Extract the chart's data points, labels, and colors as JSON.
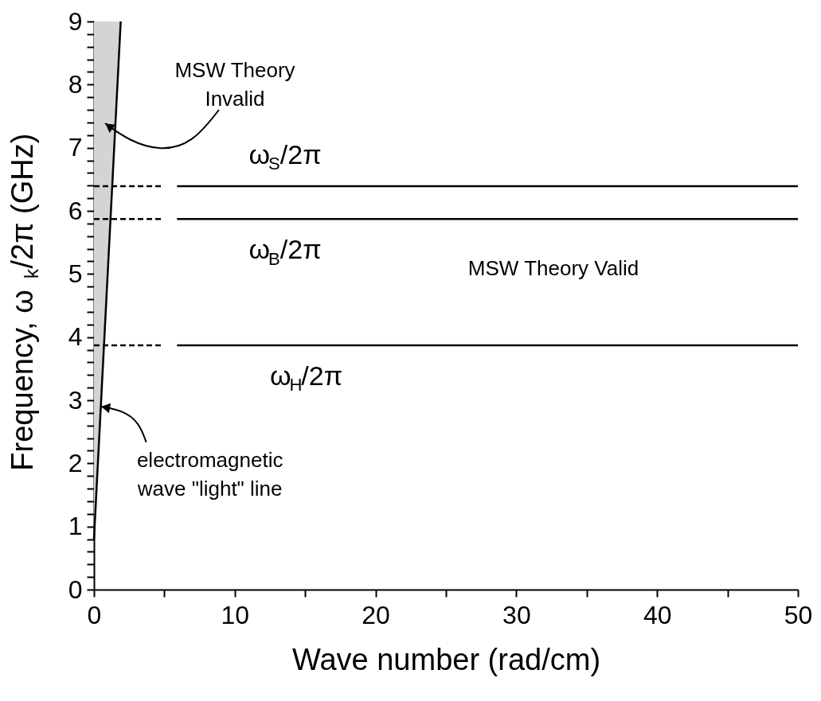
{
  "chart_data": {
    "type": "line",
    "xlabel": "Wave number (rad/cm)",
    "ylabel": "Frequency, ω$_{k}$/2π (GHz)",
    "xlim": [
      0,
      50
    ],
    "ylim": [
      0,
      9
    ],
    "xticks": [
      0,
      {
        "value": 5,
        "label": null
      },
      10,
      {
        "value": 15,
        "label": null
      },
      20,
      {
        "value": 25,
        "label": null
      },
      30,
      {
        "value": 35,
        "label": null
      },
      40,
      {
        "value": 45,
        "label": null
      },
      50
    ],
    "yticks": [
      0,
      {
        "value": 0.2,
        "label": null
      },
      {
        "value": 0.4,
        "label": null
      },
      {
        "value": 0.6,
        "label": null
      },
      {
        "value": 0.8,
        "label": null
      },
      1,
      {
        "value": 1.2,
        "label": null
      },
      {
        "value": 1.4,
        "label": null
      },
      {
        "value": 1.6,
        "label": null
      },
      {
        "value": 1.8,
        "label": null
      },
      2,
      {
        "value": 2.2,
        "label": null
      },
      {
        "value": 2.4,
        "label": null
      },
      {
        "value": 2.6,
        "label": null
      },
      {
        "value": 2.8,
        "label": null
      },
      3,
      {
        "value": 3.2,
        "label": null
      },
      {
        "value": 3.4,
        "label": null
      },
      {
        "value": 3.6,
        "label": null
      },
      {
        "value": 3.8,
        "label": null
      },
      4,
      {
        "value": 4.2,
        "label": null
      },
      {
        "value": 4.4,
        "label": null
      },
      {
        "value": 4.6,
        "label": null
      },
      {
        "value": 4.8,
        "label": null
      },
      5,
      {
        "value": 5.2,
        "label": null
      },
      {
        "value": 5.4,
        "label": null
      },
      {
        "value": 5.6,
        "label": null
      },
      {
        "value": 5.8,
        "label": null
      },
      6,
      {
        "value": 6.2,
        "label": null
      },
      {
        "value": 6.4,
        "label": null
      },
      {
        "value": 6.6,
        "label": null
      },
      {
        "value": 6.8,
        "label": null
      },
      7,
      {
        "value": 7.2,
        "label": null
      },
      {
        "value": 7.4,
        "label": null
      },
      {
        "value": 7.6,
        "label": null
      },
      {
        "value": 7.8,
        "label": null
      },
      8,
      {
        "value": 8.2,
        "label": null
      },
      {
        "value": 8.4,
        "label": null
      },
      {
        "value": 8.6,
        "label": null
      },
      {
        "value": 8.8,
        "label": null
      },
      9
    ],
    "grid": false,
    "marker": "none",
    "series": [
      {
        "x": [
          0,
          1.9
        ],
        "values": [
          0.8,
          9
        ],
        "lower": [
          0.8,
          9
        ],
        "upper": [
          9,
          9
        ],
        "color": "#000000"
      },
      {
        "x": [
          0,
          4.8
        ],
        "values": [
          6.39,
          6.39
        ],
        "color": "#000000",
        "line_style": "dashed"
      },
      {
        "x": [
          0,
          4.8
        ],
        "values": [
          5.87,
          5.87
        ],
        "color": "#000000",
        "line_style": "dashed"
      },
      {
        "x": [
          0,
          4.8
        ],
        "values": [
          3.87,
          3.87
        ],
        "color": "#000000",
        "line_style": "dashed"
      },
      {
        "name": "ω$_{S}$/2π",
        "x": [
          5.9,
          50
        ],
        "values": [
          6.39,
          6.39
        ],
        "color": "#000000",
        "line_style": "solid"
      },
      {
        "name": "ω$_{B}$/2π",
        "x": [
          5.9,
          50
        ],
        "values": [
          5.87,
          5.87
        ],
        "color": "#000000",
        "line_style": "solid"
      },
      {
        "name": "ω$_{H}$/2π",
        "x": [
          5.9,
          50
        ],
        "values": [
          3.87,
          3.87
        ],
        "color": "#000000",
        "line_style": "solid"
      }
    ],
    "annotations": [
      "MSW Theory Invalid",
      {
        "text": "electromagnetic wave \"light\" line",
        "x": 0.49,
        "y": 2.9
      },
      "MSW Theory Valid"
    ]
  }
}
